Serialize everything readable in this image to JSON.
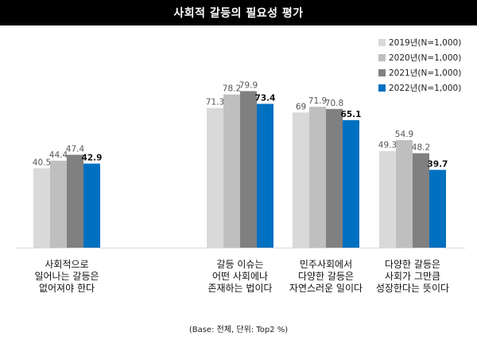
{
  "header": {
    "title": "사회적 갈등의 필요성 평가"
  },
  "footnote": "(Base: 전체, 단위: Top2 %)",
  "colors": {
    "title_bg": "#000000",
    "series": [
      "#d9d9d9",
      "#bfbfbf",
      "#808080",
      "#0070c0"
    ]
  },
  "chart_data": {
    "type": "bar",
    "title": "사회적 갈등의 필요성 평가",
    "categories": [
      "사회적으로\n일어나는 갈등은\n없어져야 한다",
      "갈등 이슈는\n어떤 사회에나\n존재하는 법이다",
      "민주사회에서\n다양한 갈등은\n자연스러운 일이다",
      "다양한 갈등은\n사회가 그만큼\n성장한다는 뜻이다"
    ],
    "series": [
      {
        "name": "2019년(N=1,000)",
        "values": [
          40.5,
          71.3,
          69,
          49.3
        ]
      },
      {
        "name": "2020년(N=1,000)",
        "values": [
          44.4,
          78.2,
          71.9,
          54.9
        ]
      },
      {
        "name": "2021년(N=1,000)",
        "values": [
          47.4,
          79.9,
          70.8,
          48.2
        ]
      },
      {
        "name": "2022년(N=1,000)",
        "values": [
          42.9,
          73.4,
          65.1,
          39.7
        ]
      }
    ],
    "value_labels": [
      [
        "40.5",
        "71.3",
        "69",
        "49.3"
      ],
      [
        "44.4",
        "78.2",
        "71.9",
        "54.9"
      ],
      [
        "47.4",
        "79.9",
        "70.8",
        "48.2"
      ],
      [
        "42.9",
        "73.4",
        "65.1",
        "39.7"
      ]
    ],
    "ylim": [
      0,
      100
    ],
    "legend_position": "top-right",
    "grid": false,
    "xlabel": "",
    "ylabel": ""
  }
}
